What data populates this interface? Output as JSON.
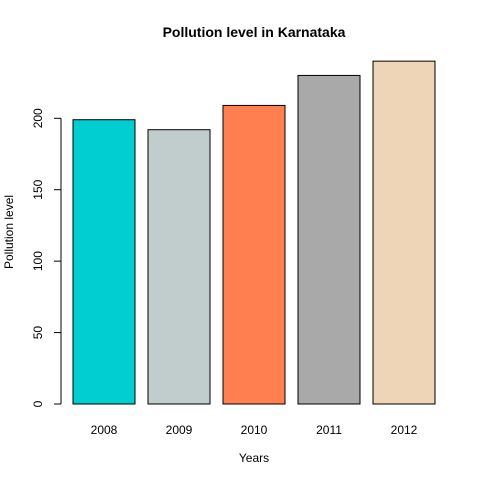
{
  "chart_data": {
    "type": "bar",
    "title": "Pollution level in Karnataka",
    "xlabel": "Years",
    "ylabel": "Pollution level",
    "categories": [
      "2008",
      "2009",
      "2010",
      "2011",
      "2012"
    ],
    "values": [
      199,
      192,
      209,
      230,
      240
    ],
    "colors": [
      "#00CED1",
      "#C1CDCD",
      "#FF7F50",
      "#A9A9A9",
      "#EED5B7"
    ],
    "yticks": [
      0,
      50,
      100,
      150,
      200
    ],
    "ylim": [
      0,
      240
    ],
    "grid": false,
    "legend": "none"
  }
}
